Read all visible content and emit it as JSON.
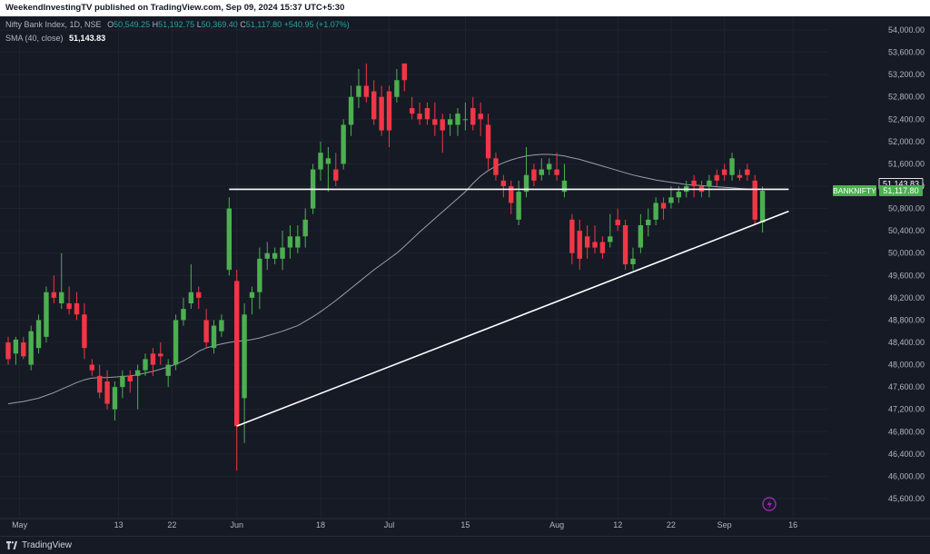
{
  "header": {
    "publisher": "WeekendInvestingTV published on TradingView.com, Sep 09, 2024 15:37 UTC+5:30"
  },
  "legend": {
    "symbol": "Nifty Bank Index, 1D, NSE",
    "open_label": "O",
    "open": "50,549.25",
    "high_label": "H",
    "high": "51,192.75",
    "low_label": "L",
    "low": "50,369.40",
    "close_label": "C",
    "close": "51,117.80",
    "change": "+540.95 (+1.07%)",
    "sma_label": "SMA (40, close)",
    "sma_value": "51,143.83"
  },
  "footer": {
    "brand": "TradingView"
  },
  "colors": {
    "up": "#4caf50",
    "down": "#f23645",
    "sma": "#b2b5be",
    "trendline": "#ffffff",
    "background": "#161a25"
  },
  "chart_data": {
    "type": "candlestick",
    "symbol": "BANKNIFTY",
    "interval": "1D",
    "ylim": [
      45400,
      54200
    ],
    "y_ticks": [
      45600,
      46000,
      46400,
      46800,
      47200,
      47600,
      48000,
      48400,
      48800,
      49200,
      49600,
      50000,
      50400,
      50800,
      51200,
      51600,
      52000,
      52400,
      52800,
      53200,
      53600,
      54000
    ],
    "x_ticks": [
      {
        "label": "May",
        "date": "2024-05-01"
      },
      {
        "label": "13",
        "date": "2024-05-13"
      },
      {
        "label": "22",
        "date": "2024-05-22"
      },
      {
        "label": "Jun",
        "date": "2024-06-03"
      },
      {
        "label": "18",
        "date": "2024-06-18"
      },
      {
        "label": "Jul",
        "date": "2024-07-01"
      },
      {
        "label": "15",
        "date": "2024-07-15"
      },
      {
        "label": "Aug",
        "date": "2024-08-01"
      },
      {
        "label": "12",
        "date": "2024-08-12"
      },
      {
        "label": "22",
        "date": "2024-08-22"
      },
      {
        "label": "Sep",
        "date": "2024-09-02"
      },
      {
        "label": "16",
        "date": "2024-09-16"
      }
    ],
    "candles": [
      {
        "o": 48400,
        "h": 48500,
        "l": 48000,
        "c": 48100
      },
      {
        "o": 48200,
        "h": 48500,
        "l": 48000,
        "c": 48450
      },
      {
        "o": 48400,
        "h": 48500,
        "l": 48100,
        "c": 48150
      },
      {
        "o": 48000,
        "h": 48700,
        "l": 47900,
        "c": 48600
      },
      {
        "o": 48300,
        "h": 48900,
        "l": 48200,
        "c": 48800
      },
      {
        "o": 48500,
        "h": 49400,
        "l": 48400,
        "c": 49300
      },
      {
        "o": 49300,
        "h": 49600,
        "l": 49100,
        "c": 49200
      },
      {
        "o": 49100,
        "h": 50000,
        "l": 49000,
        "c": 49300
      },
      {
        "o": 49100,
        "h": 49400,
        "l": 48900,
        "c": 49000
      },
      {
        "o": 49100,
        "h": 49300,
        "l": 48800,
        "c": 48900
      },
      {
        "o": 48900,
        "h": 49100,
        "l": 48100,
        "c": 48300
      },
      {
        "o": 48000,
        "h": 48100,
        "l": 47800,
        "c": 47900
      },
      {
        "o": 47800,
        "h": 48000,
        "l": 47400,
        "c": 47500
      },
      {
        "o": 47700,
        "h": 47900,
        "l": 47200,
        "c": 47300
      },
      {
        "o": 47200,
        "h": 47700,
        "l": 47000,
        "c": 47600
      },
      {
        "o": 47600,
        "h": 47900,
        "l": 47400,
        "c": 47800
      },
      {
        "o": 47800,
        "h": 47900,
        "l": 47500,
        "c": 47700
      },
      {
        "o": 47800,
        "h": 48000,
        "l": 47200,
        "c": 47900
      },
      {
        "o": 47900,
        "h": 48200,
        "l": 47800,
        "c": 48100
      },
      {
        "o": 48200,
        "h": 48300,
        "l": 47800,
        "c": 48000
      },
      {
        "o": 48200,
        "h": 48400,
        "l": 48000,
        "c": 48150
      },
      {
        "o": 47800,
        "h": 48100,
        "l": 47600,
        "c": 48000
      },
      {
        "o": 48000,
        "h": 48900,
        "l": 47900,
        "c": 48800
      },
      {
        "o": 48800,
        "h": 49200,
        "l": 48700,
        "c": 49000
      },
      {
        "o": 49100,
        "h": 49800,
        "l": 49000,
        "c": 49300
      },
      {
        "o": 49300,
        "h": 49400,
        "l": 49000,
        "c": 49200
      },
      {
        "o": 48800,
        "h": 49000,
        "l": 48300,
        "c": 48400
      },
      {
        "o": 48300,
        "h": 48800,
        "l": 48200,
        "c": 48700
      },
      {
        "o": 48600,
        "h": 48900,
        "l": 48500,
        "c": 48800
      },
      {
        "o": 49700,
        "h": 51000,
        "l": 49600,
        "c": 50800
      },
      {
        "o": 49500,
        "h": 49700,
        "l": 46100,
        "c": 46900
      },
      {
        "o": 47400,
        "h": 49100,
        "l": 46600,
        "c": 48900
      },
      {
        "o": 49200,
        "h": 49400,
        "l": 48900,
        "c": 49300
      },
      {
        "o": 49300,
        "h": 50100,
        "l": 49000,
        "c": 49900
      },
      {
        "o": 49900,
        "h": 50200,
        "l": 49700,
        "c": 50000
      },
      {
        "o": 49900,
        "h": 50100,
        "l": 49800,
        "c": 50000
      },
      {
        "o": 49900,
        "h": 50400,
        "l": 49700,
        "c": 50100
      },
      {
        "o": 50100,
        "h": 50500,
        "l": 49900,
        "c": 50300
      },
      {
        "o": 50100,
        "h": 50500,
        "l": 50000,
        "c": 50300
      },
      {
        "o": 50300,
        "h": 50800,
        "l": 50100,
        "c": 50600
      },
      {
        "o": 50800,
        "h": 51600,
        "l": 50700,
        "c": 51500
      },
      {
        "o": 51500,
        "h": 52000,
        "l": 51300,
        "c": 51800
      },
      {
        "o": 51600,
        "h": 51900,
        "l": 51100,
        "c": 51700
      },
      {
        "o": 51500,
        "h": 51800,
        "l": 51200,
        "c": 51300
      },
      {
        "o": 51600,
        "h": 52400,
        "l": 51500,
        "c": 52300
      },
      {
        "o": 52300,
        "h": 53000,
        "l": 52100,
        "c": 52800
      },
      {
        "o": 52800,
        "h": 53300,
        "l": 52600,
        "c": 53000
      },
      {
        "o": 53000,
        "h": 53400,
        "l": 52700,
        "c": 52800
      },
      {
        "o": 52900,
        "h": 53100,
        "l": 52300,
        "c": 52400
      },
      {
        "o": 52800,
        "h": 53000,
        "l": 52100,
        "c": 52200
      },
      {
        "o": 52900,
        "h": 53000,
        "l": 51900,
        "c": 52200
      },
      {
        "o": 52800,
        "h": 53300,
        "l": 52700,
        "c": 53100
      },
      {
        "o": 53400,
        "h": 53400,
        "l": 52900,
        "c": 53100
      },
      {
        "o": 52600,
        "h": 52800,
        "l": 52400,
        "c": 52500
      },
      {
        "o": 52500,
        "h": 52700,
        "l": 52300,
        "c": 52400
      },
      {
        "o": 52600,
        "h": 52700,
        "l": 52300,
        "c": 52400
      },
      {
        "o": 52400,
        "h": 52700,
        "l": 52100,
        "c": 52300
      },
      {
        "o": 52400,
        "h": 52500,
        "l": 51800,
        "c": 52200
      },
      {
        "o": 52300,
        "h": 52500,
        "l": 52100,
        "c": 52400
      },
      {
        "o": 52300,
        "h": 52600,
        "l": 52100,
        "c": 52500
      },
      {
        "o": 52400,
        "h": 52700,
        "l": 52200,
        "c": 52400
      },
      {
        "o": 52600,
        "h": 52800,
        "l": 52200,
        "c": 52300
      },
      {
        "o": 52500,
        "h": 52700,
        "l": 52100,
        "c": 52400
      },
      {
        "o": 52300,
        "h": 52500,
        "l": 51500,
        "c": 51700
      },
      {
        "o": 51700,
        "h": 51800,
        "l": 51300,
        "c": 51400
      },
      {
        "o": 51300,
        "h": 51400,
        "l": 51000,
        "c": 51200
      },
      {
        "o": 51200,
        "h": 51300,
        "l": 50700,
        "c": 50900
      },
      {
        "o": 50600,
        "h": 51300,
        "l": 50500,
        "c": 51100
      },
      {
        "o": 51100,
        "h": 51900,
        "l": 51000,
        "c": 51400
      },
      {
        "o": 51500,
        "h": 51600,
        "l": 51200,
        "c": 51300
      },
      {
        "o": 51400,
        "h": 51700,
        "l": 51300,
        "c": 51500
      },
      {
        "o": 51500,
        "h": 51700,
        "l": 51400,
        "c": 51600
      },
      {
        "o": 51500,
        "h": 51800,
        "l": 51300,
        "c": 51400
      },
      {
        "o": 51100,
        "h": 51600,
        "l": 51000,
        "c": 51300
      },
      {
        "o": 50600,
        "h": 50700,
        "l": 49800,
        "c": 50000
      },
      {
        "o": 50400,
        "h": 50600,
        "l": 49700,
        "c": 49900
      },
      {
        "o": 50300,
        "h": 50500,
        "l": 49900,
        "c": 50100
      },
      {
        "o": 50200,
        "h": 50500,
        "l": 50000,
        "c": 50100
      },
      {
        "o": 50200,
        "h": 50300,
        "l": 49900,
        "c": 50000
      },
      {
        "o": 50200,
        "h": 50700,
        "l": 50100,
        "c": 50300
      },
      {
        "o": 50600,
        "h": 50800,
        "l": 50400,
        "c": 50500
      },
      {
        "o": 50500,
        "h": 50600,
        "l": 49700,
        "c": 49800
      },
      {
        "o": 49800,
        "h": 50100,
        "l": 49700,
        "c": 49900
      },
      {
        "o": 50100,
        "h": 50700,
        "l": 50000,
        "c": 50500
      },
      {
        "o": 50500,
        "h": 50800,
        "l": 50300,
        "c": 50600
      },
      {
        "o": 50600,
        "h": 51000,
        "l": 50500,
        "c": 50900
      },
      {
        "o": 50900,
        "h": 51000,
        "l": 50600,
        "c": 50800
      },
      {
        "o": 50900,
        "h": 51200,
        "l": 50800,
        "c": 51000
      },
      {
        "o": 51000,
        "h": 51200,
        "l": 50900,
        "c": 51100
      },
      {
        "o": 51100,
        "h": 51300,
        "l": 51000,
        "c": 51200
      },
      {
        "o": 51300,
        "h": 51400,
        "l": 51000,
        "c": 51200
      },
      {
        "o": 51200,
        "h": 51300,
        "l": 51000,
        "c": 51100
      },
      {
        "o": 51200,
        "h": 51400,
        "l": 51000,
        "c": 51300
      },
      {
        "o": 51400,
        "h": 51500,
        "l": 51200,
        "c": 51300
      },
      {
        "o": 51500,
        "h": 51600,
        "l": 51300,
        "c": 51400
      },
      {
        "o": 51400,
        "h": 51800,
        "l": 51300,
        "c": 51700
      },
      {
        "o": 51400,
        "h": 51500,
        "l": 51300,
        "c": 51350
      },
      {
        "o": 51500,
        "h": 51600,
        "l": 51300,
        "c": 51400
      },
      {
        "o": 51300,
        "h": 51400,
        "l": 50500,
        "c": 50600
      },
      {
        "o": 50549.25,
        "h": 51192.75,
        "l": 50369.4,
        "c": 51117.8
      }
    ],
    "sma": {
      "name": "SMA (40, close)",
      "value": 51143.83,
      "values": [
        47300,
        47320,
        47340,
        47370,
        47400,
        47450,
        47500,
        47560,
        47620,
        47680,
        47730,
        47760,
        47770,
        47770,
        47780,
        47790,
        47800,
        47820,
        47850,
        47880,
        47920,
        47960,
        48010,
        48070,
        48150,
        48240,
        48300,
        48340,
        48370,
        48400,
        48420,
        48430,
        48450,
        48480,
        48520,
        48560,
        48600,
        48650,
        48700,
        48780,
        48860,
        48950,
        49050,
        49150,
        49260,
        49370,
        49480,
        49590,
        49700,
        49800,
        49900,
        50000,
        50120,
        50250,
        50380,
        50500,
        50620,
        50740,
        50860,
        50980,
        51100,
        51250,
        51380,
        51480,
        51560,
        51620,
        51670,
        51710,
        51740,
        51760,
        51770,
        51770,
        51760,
        51740,
        51710,
        51680,
        51640,
        51600,
        51560,
        51520,
        51480,
        51440,
        51400,
        51370,
        51340,
        51310,
        51290,
        51270,
        51250,
        51230,
        51220,
        51210,
        51200,
        51190,
        51180,
        51170,
        51160,
        51150,
        51145,
        51143.83
      ]
    },
    "annotations": [
      {
        "type": "horizontal_line",
        "price": 51143.83,
        "from_index": 29,
        "to_index": 101
      },
      {
        "type": "trend_line",
        "from": {
          "index": 30,
          "price": 46900
        },
        "to": {
          "index": 101,
          "price": 50750
        }
      }
    ],
    "price_labels": [
      {
        "text": "51,143.83",
        "value": 51143.83,
        "style": "outline"
      },
      {
        "text": "51,117.80",
        "value": 51117.8,
        "style": "green",
        "tag": "BANKNIFTY"
      }
    ]
  }
}
